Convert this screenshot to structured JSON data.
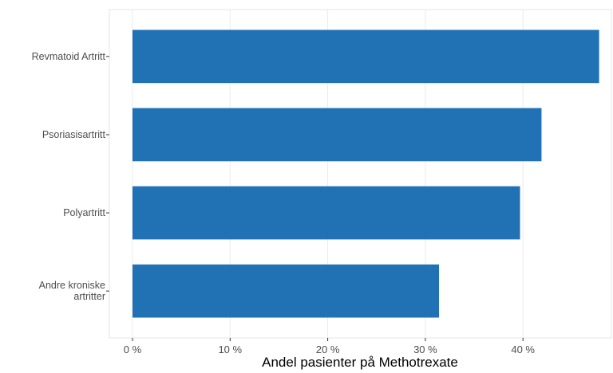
{
  "chart_data": {
    "type": "bar",
    "orientation": "horizontal",
    "categories": [
      "Revmatoid Artritt",
      "Psoriasisartritt",
      "Polyartritt",
      "Andre kroniske\nartritter"
    ],
    "values": [
      47.8,
      41.9,
      39.7,
      31.4
    ],
    "color": "#2171b5",
    "xlabel": "Andel pasienter på Methotrexate",
    "xlim": [
      -2.37,
      49.06
    ],
    "xticks": [
      {
        "value": 0,
        "label": "0 %"
      },
      {
        "value": 10,
        "label": "10 %"
      },
      {
        "value": 20,
        "label": "20 %"
      },
      {
        "value": 30,
        "label": "30 %"
      },
      {
        "value": 40,
        "label": "40 %"
      }
    ],
    "grid": true
  }
}
